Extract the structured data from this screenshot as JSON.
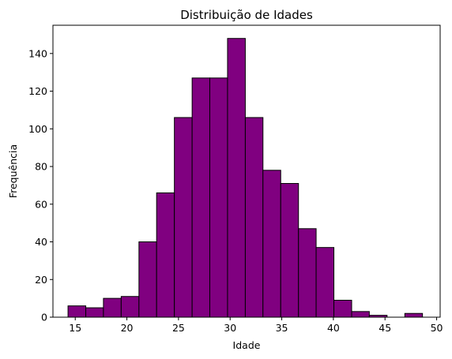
{
  "chart_data": {
    "type": "bar",
    "title": "Distribuição de Idades",
    "xlabel": "Idade",
    "ylabel": "Frequência",
    "xlim": [
      12.84,
      50.34
    ],
    "ylim": [
      0,
      155
    ],
    "xticks": [
      15,
      20,
      25,
      30,
      35,
      40,
      45,
      50
    ],
    "yticks": [
      0,
      20,
      40,
      60,
      80,
      100,
      120,
      140
    ],
    "bin_edges": [
      14.3,
      16.02,
      17.73,
      19.45,
      21.17,
      22.88,
      24.6,
      26.32,
      28.03,
      29.75,
      31.47,
      33.18,
      34.9,
      36.62,
      38.33,
      40.05,
      41.77,
      43.48,
      45.2,
      46.92,
      48.63
    ],
    "values": [
      6,
      5,
      10,
      11,
      40,
      66,
      106,
      127,
      127,
      148,
      106,
      78,
      71,
      47,
      37,
      9,
      3,
      1,
      0,
      2
    ],
    "bar_color": "#800080",
    "edge_color": "#000000",
    "grid": false,
    "legend": "none"
  }
}
